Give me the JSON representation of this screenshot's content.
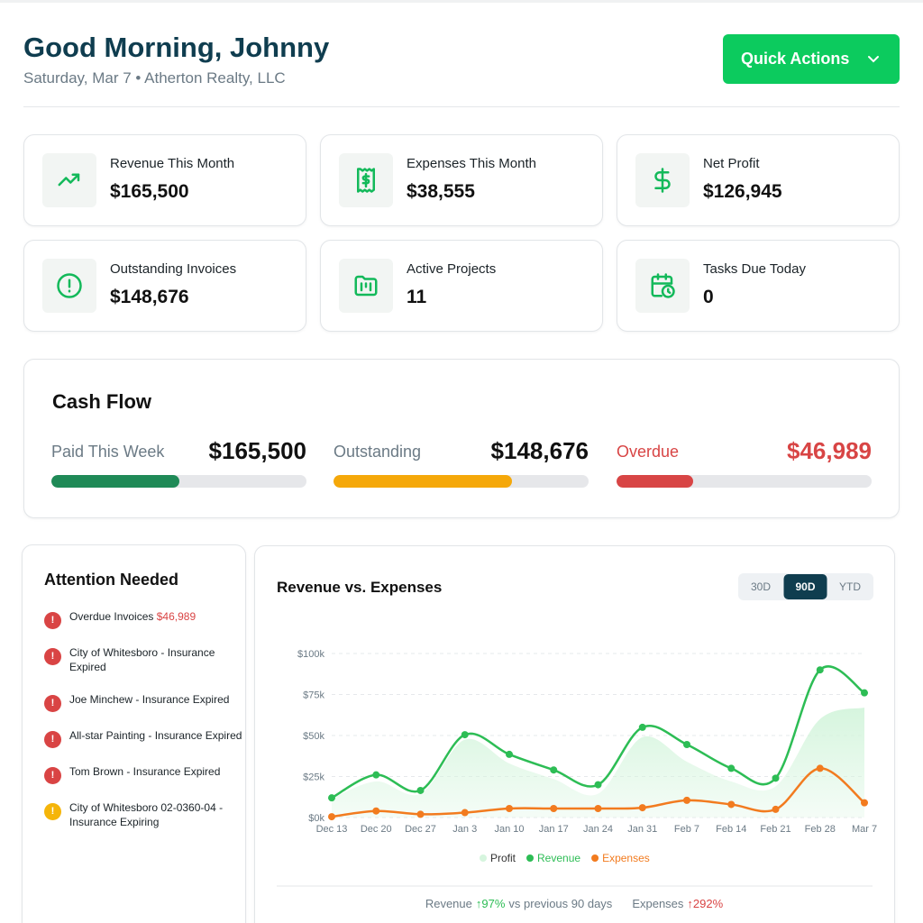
{
  "header": {
    "title": "Good Morning, Johnny",
    "subtitle": "Saturday, Mar 7 • Atherton Realty, LLC",
    "button": "Quick Actions"
  },
  "kpis": [
    {
      "label": "Revenue This Month",
      "value": "$165,500"
    },
    {
      "label": "Expenses This Month",
      "value": "$38,555"
    },
    {
      "label": "Net Profit",
      "value": "$126,945"
    },
    {
      "label": "Outstanding Invoices",
      "value": "$148,676"
    },
    {
      "label": "Active Projects",
      "value": "11"
    },
    {
      "label": "Tasks Due Today",
      "value": "0"
    }
  ],
  "cash_flow": {
    "title": "Cash Flow",
    "items": [
      {
        "label": "Paid This Week",
        "amount": "$165,500",
        "progress": 50,
        "color": "#1f8a57"
      },
      {
        "label": "Outstanding",
        "amount": "$148,676",
        "progress": 70,
        "color": "#f5a80a"
      },
      {
        "label": "Overdue",
        "amount": "$46,989",
        "progress": 30,
        "color": "#d84545"
      }
    ]
  },
  "attention": {
    "title": "Attention Needed",
    "items": [
      {
        "icon": "!",
        "text": "Overdue Invoices",
        "amount": "$46,989",
        "color": "#d94444"
      },
      {
        "icon": "!",
        "text": "City of Whitesboro - Insurance Expired",
        "color": "#d94444"
      },
      {
        "icon": "!",
        "text": "Joe Minchew - Insurance Expired",
        "color": "#d94444"
      },
      {
        "icon": "!",
        "text": "All-star Painting - Insurance Expired",
        "color": "#d94444"
      },
      {
        "icon": "!",
        "text": "Tom Brown - Insurance Expired",
        "color": "#d94444"
      },
      {
        "icon": "!",
        "text": "City of Whitesboro 02-0360-04 - Insurance Expiring",
        "color": "#f5b50a"
      }
    ]
  },
  "chart_data": {
    "type": "line",
    "title": "Revenue vs. Expenses",
    "ranges": [
      "30D",
      "90D",
      "YTD"
    ],
    "active_range": 1,
    "categories": [
      "Dec 13",
      "Dec 20",
      "Dec 27",
      "Jan 3",
      "Jan 10",
      "Jan 17",
      "Jan 24",
      "Jan 31",
      "Feb 7",
      "Feb 14",
      "Feb 21",
      "Feb 28",
      "Mar 7"
    ],
    "series": [
      {
        "name": "Profit",
        "style": "area",
        "color": "#d6f5de",
        "values": [
          11.5,
          22,
          14.5,
          47.5,
          33,
          23.5,
          14.5,
          49,
          34,
          22,
          19,
          60,
          67
        ]
      },
      {
        "name": "Revenue",
        "style": "line",
        "color": "#2dbd55",
        "values": [
          12,
          26,
          16.5,
          50.5,
          38.5,
          29,
          20,
          55,
          44.5,
          30,
          24,
          90,
          76
        ]
      },
      {
        "name": "Expenses",
        "style": "line",
        "color": "#f27b1f",
        "values": [
          0.5,
          4,
          2,
          3,
          5.5,
          5.5,
          5.5,
          6,
          10.5,
          8,
          5,
          30,
          9
        ]
      }
    ],
    "ylim": [
      0,
      100
    ],
    "yticks": [
      {
        "value": 0,
        "label": "$0k"
      },
      {
        "value": 25,
        "label": "$25k"
      },
      {
        "value": 50,
        "label": "$50k"
      },
      {
        "value": 75,
        "label": "$75k"
      },
      {
        "value": 100,
        "label": "$100k"
      }
    ],
    "grid": true,
    "footer": {
      "revenue_label": "Revenue",
      "revenue_change": "↑97%",
      "revenue_note": "vs previous 90 days",
      "expenses_label": "Expenses",
      "expenses_change": "↑292%"
    }
  }
}
